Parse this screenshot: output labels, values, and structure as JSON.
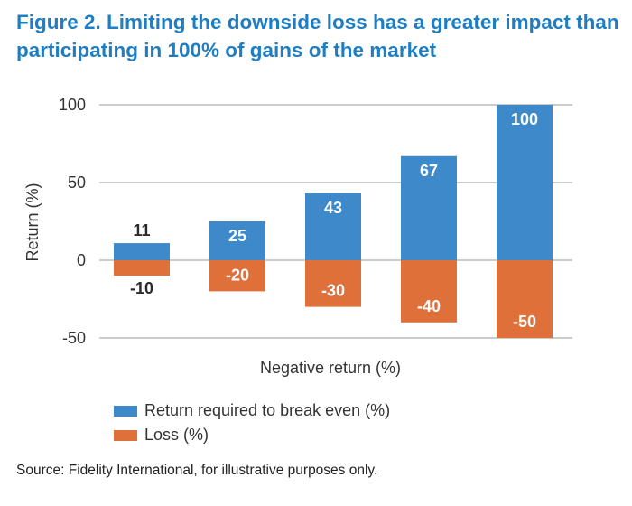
{
  "figure": {
    "title": "Figure 2. Limiting the downside loss has a greater impact than participating in 100% of gains of the market",
    "source": "Source: Fidelity International, for illustrative purposes only."
  },
  "chart_data": {
    "type": "bar",
    "title": "",
    "xlabel": "Negative return (%)",
    "ylabel": "Return (%)",
    "ylim": [
      -50,
      100
    ],
    "yticks": [
      100,
      50,
      0,
      -50
    ],
    "categories": [
      "",
      "",
      "",
      "",
      ""
    ],
    "series": [
      {
        "name": "Return required to break even (%)",
        "values": [
          11,
          25,
          43,
          67,
          100
        ],
        "color": "#3d89c9"
      },
      {
        "name": "Loss (%)",
        "values": [
          -10,
          -20,
          -30,
          -40,
          -50
        ],
        "color": "#e0703a"
      }
    ],
    "grid": "horizontal",
    "legend_position": "bottom"
  }
}
